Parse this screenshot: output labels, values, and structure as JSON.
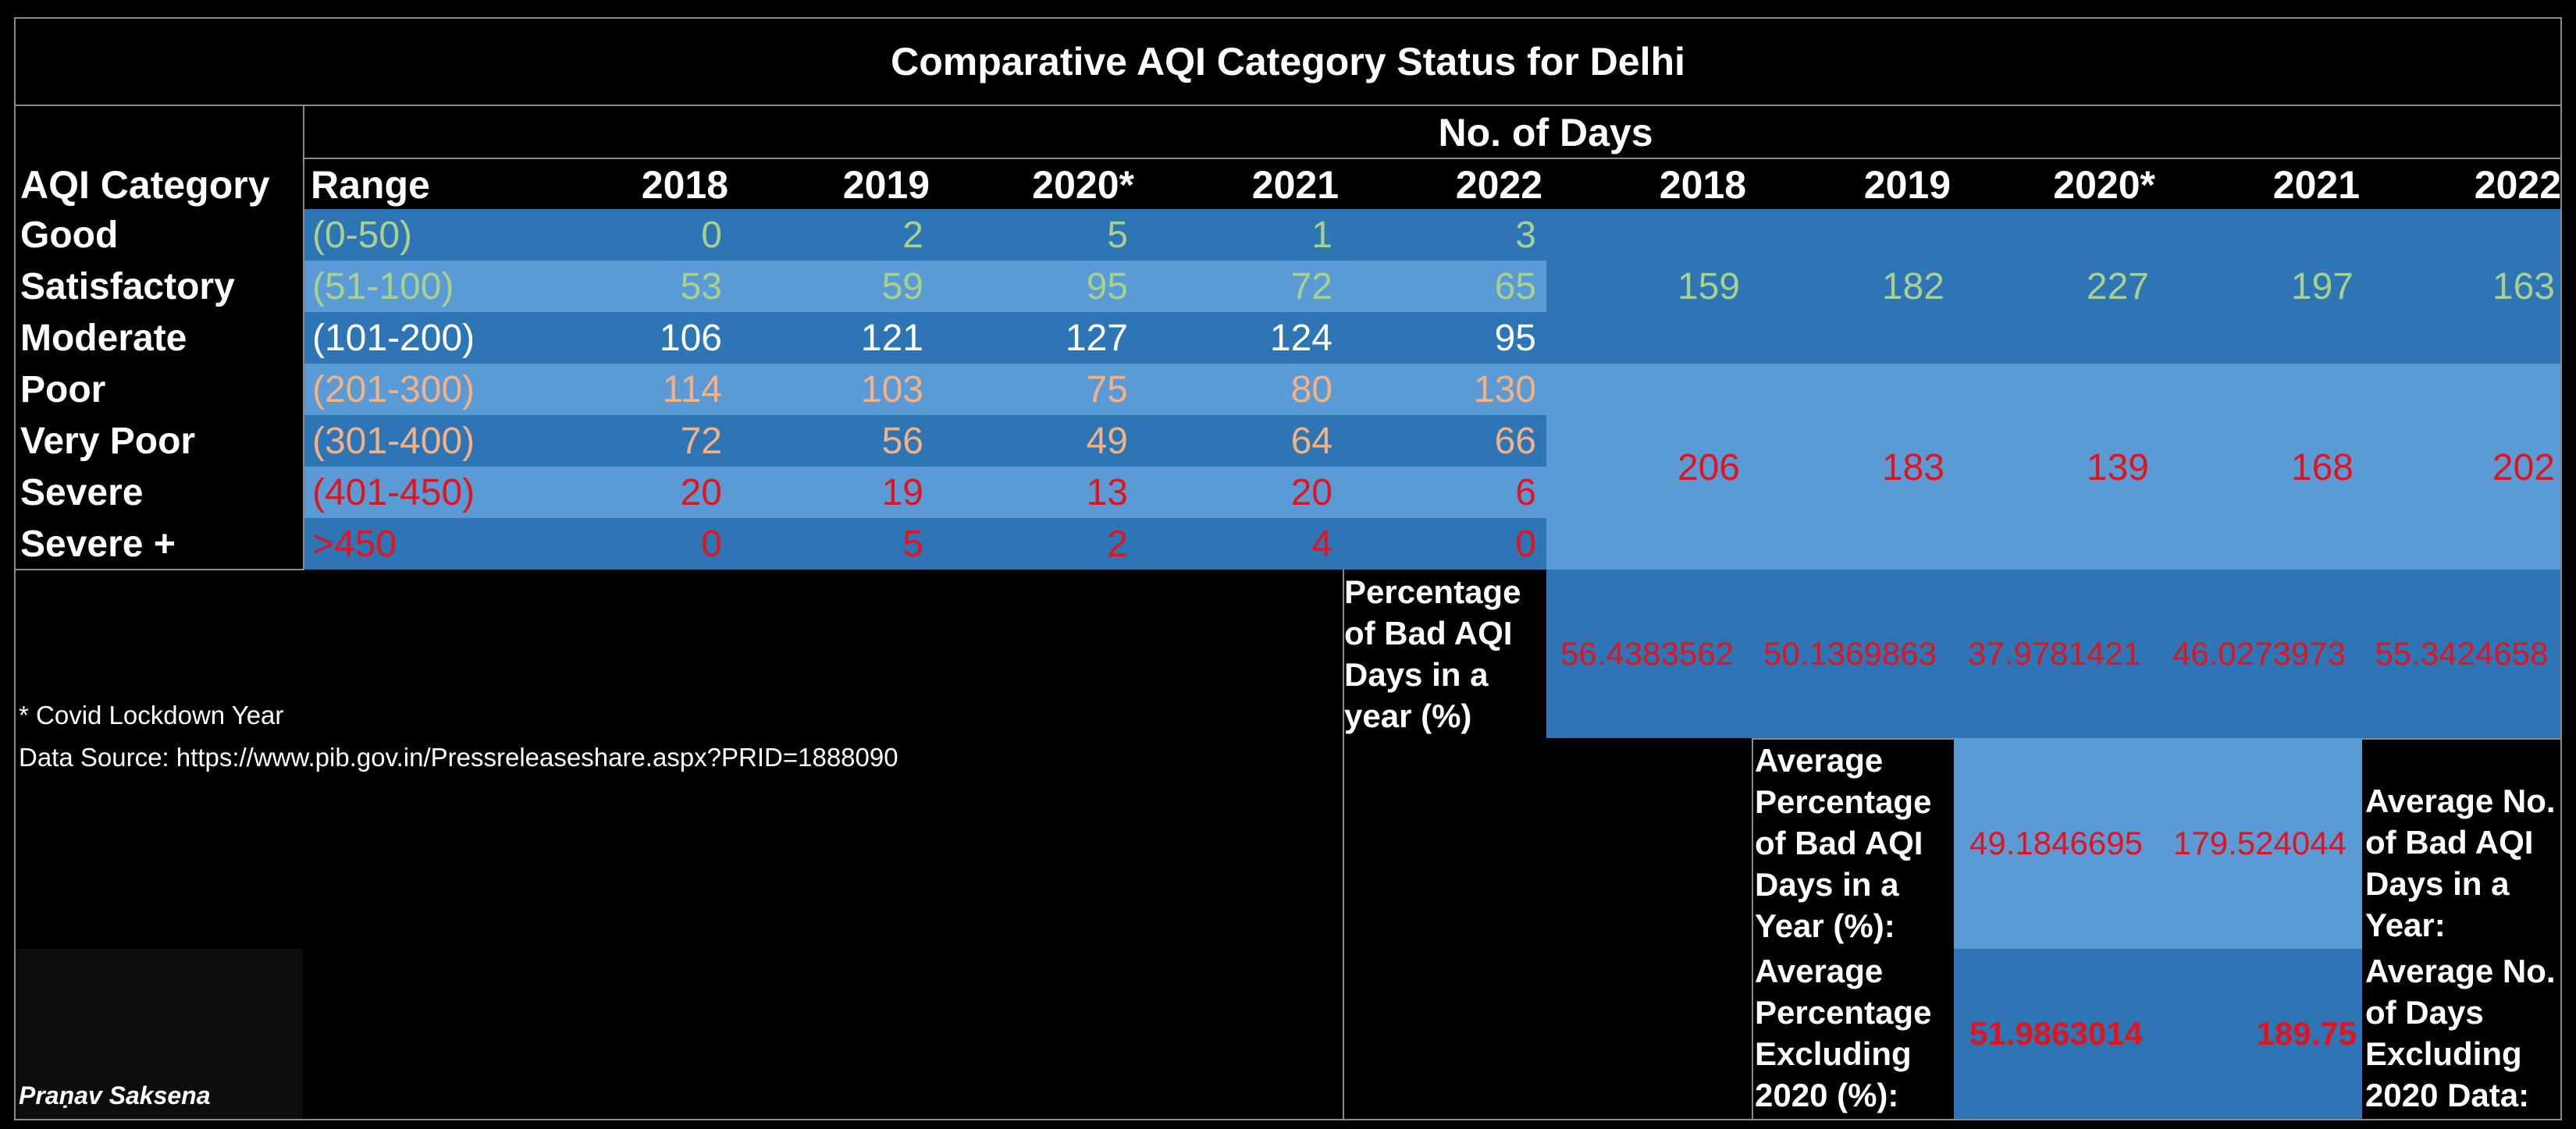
{
  "title": "Comparative AQI Category Status for Delhi",
  "header": {
    "no_of_days": "No. of Days",
    "aqi_category": "AQI Category",
    "range": "Range",
    "years": [
      "2018",
      "2019",
      "2020*",
      "2021",
      "2022"
    ],
    "summary_years": [
      "2018",
      "2019",
      "2020*",
      "2021",
      "2022"
    ]
  },
  "rows": [
    {
      "category": "Good",
      "range": "(0-50)",
      "values": [
        "0",
        "2",
        "5",
        "1",
        "3"
      ]
    },
    {
      "category": "Satisfactory",
      "range": "(51-100)",
      "values": [
        "53",
        "59",
        "95",
        "72",
        "65"
      ]
    },
    {
      "category": "Moderate",
      "range": "(101-200)",
      "values": [
        "106",
        "121",
        "127",
        "124",
        "95"
      ]
    },
    {
      "category": "Poor",
      "range": "(201-300)",
      "values": [
        "114",
        "103",
        "75",
        "80",
        "130"
      ]
    },
    {
      "category": "Very Poor",
      "range": "(301-400)",
      "values": [
        "72",
        "56",
        "49",
        "64",
        "66"
      ]
    },
    {
      "category": "Severe",
      "range": "(401-450)",
      "values": [
        "20",
        "19",
        "13",
        "20",
        "6"
      ]
    },
    {
      "category": "Severe +",
      "range": ">450",
      "values": [
        "0",
        "5",
        "2",
        "4",
        "0"
      ]
    }
  ],
  "good_days_totals": [
    "159",
    "182",
    "227",
    "197",
    "163"
  ],
  "bad_days_totals": [
    "206",
    "183",
    "139",
    "168",
    "202"
  ],
  "pct_bad": {
    "label": "Percentage of Bad AQI Days in a year (%)",
    "values": [
      "56.4383562",
      "50.1369863",
      "37.9781421",
      "46.0273973",
      "55.3424658"
    ]
  },
  "avg": {
    "pct_label": "Average Percentage of Bad AQI Days in a Year (%):",
    "pct_value": "49.1846695",
    "days_value": "179.524044",
    "days_label": "Average No. of Bad AQI Days in a Year:"
  },
  "avg_excl": {
    "pct_label": "Average Percentage Excluding 2020 (%):",
    "pct_value": "51.9863014",
    "days_value": "189.75",
    "days_label": "Average No. of Days Excluding 2020 Data:"
  },
  "notes": {
    "covid": "* Covid Lockdown Year",
    "source": "Data Source: https://www.pib.gov.in/Pressreleaseshare.aspx?PRID=1888090"
  },
  "author": "Praṇav Saksena",
  "colors": {
    "dark_blue": "#2e75b6",
    "light_blue": "#5b9bd5",
    "good_text": "#a9d18e",
    "moderate_text": "#ffffff",
    "poor_text": "#f4b183",
    "severe_text": "#e0141e"
  }
}
